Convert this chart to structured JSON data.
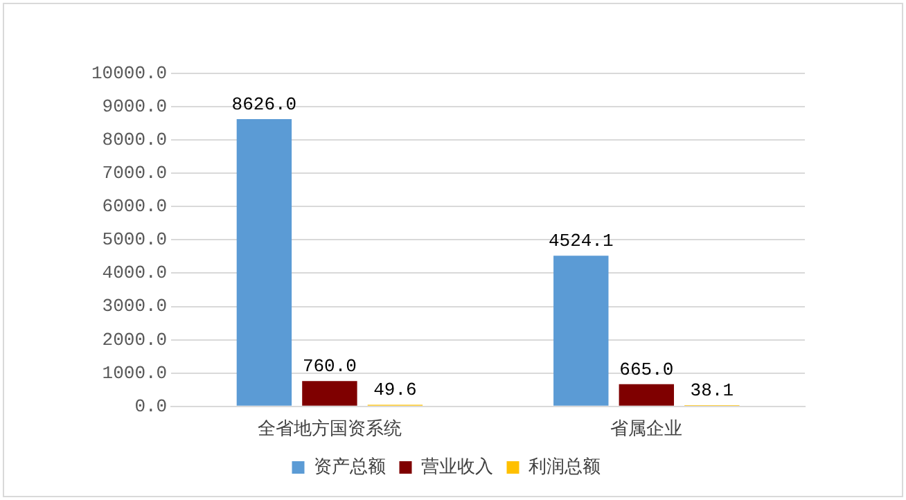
{
  "chart_data": {
    "type": "bar",
    "categories": [
      "全省地方国资系统",
      "省属企业"
    ],
    "series": [
      {
        "name": "资产总额",
        "color": "#5b9bd5",
        "values": [
          8626.0,
          4524.1
        ],
        "value_labels": [
          "8626.0",
          "4524.1"
        ]
      },
      {
        "name": "营业收入",
        "color": "#7f0000",
        "values": [
          760.0,
          665.0
        ],
        "value_labels": [
          "760.0",
          "665.0"
        ]
      },
      {
        "name": "利润总额",
        "color": "#ffc000",
        "values": [
          49.6,
          38.1
        ],
        "value_labels": [
          "49.6",
          "38.1"
        ]
      }
    ],
    "ylim": [
      0,
      10000
    ],
    "yticks": [
      {
        "value": 0,
        "label": "0.0"
      },
      {
        "value": 1000,
        "label": "1000.0"
      },
      {
        "value": 2000,
        "label": "2000.0"
      },
      {
        "value": 3000,
        "label": "3000.0"
      },
      {
        "value": 4000,
        "label": "4000.0"
      },
      {
        "value": 5000,
        "label": "5000.0"
      },
      {
        "value": 6000,
        "label": "6000.0"
      },
      {
        "value": 7000,
        "label": "7000.0"
      },
      {
        "value": 8000,
        "label": "8000.0"
      },
      {
        "value": 9000,
        "label": "9000.0"
      },
      {
        "value": 10000,
        "label": "10000.0"
      }
    ],
    "grid": "y",
    "legend": "bottom"
  }
}
